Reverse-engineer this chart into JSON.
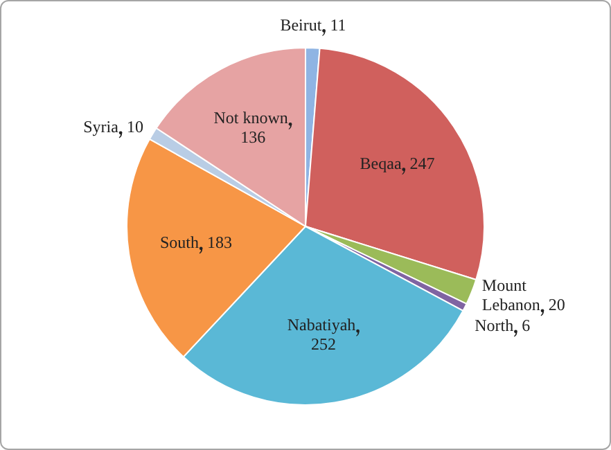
{
  "chart_data": {
    "type": "pie",
    "categories": [
      "Beirut",
      "Beqaa",
      "Mount Lebanon",
      "North",
      "Nabatiyah",
      "South",
      "Syria",
      "Not known"
    ],
    "values": [
      11,
      247,
      20,
      6,
      252,
      183,
      10,
      136
    ],
    "colors": [
      "#8fb4e3",
      "#d0605d",
      "#9bbb59",
      "#8064a2",
      "#5ab8d6",
      "#f79646",
      "#b9cde5",
      "#e6a3a3"
    ],
    "data_labels": true,
    "legend": false
  }
}
